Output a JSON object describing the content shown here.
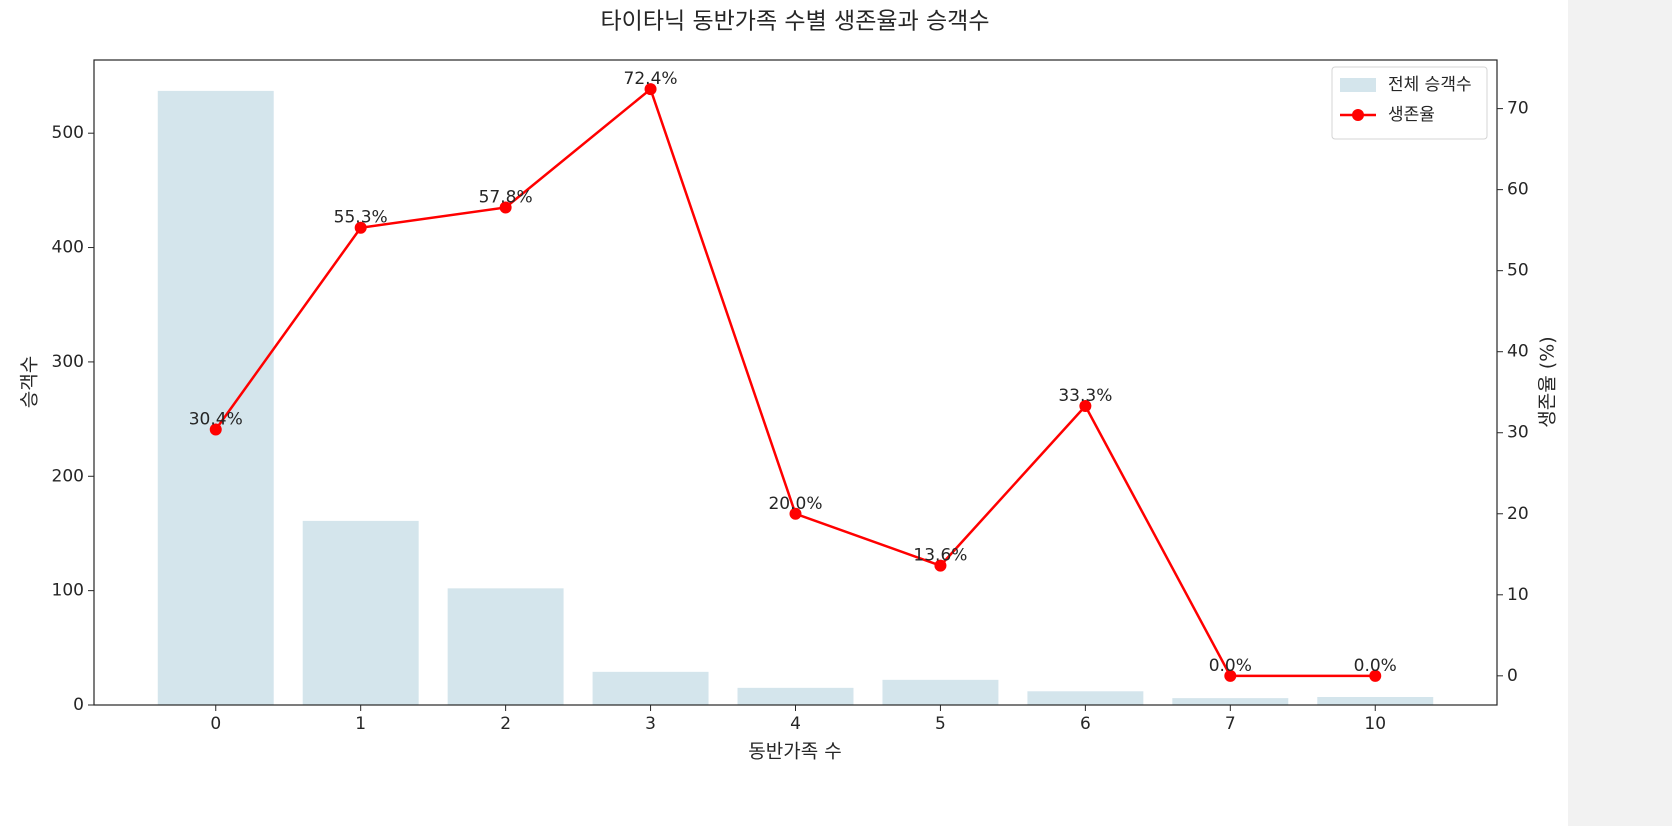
{
  "chart_data": {
    "type": "combo",
    "title": "타이타닉 동반가족 수별 생존율과 승객수",
    "x_label": "동반가족 수",
    "y_label": "승객수",
    "y2_label": "생존율 (%)",
    "categories": [
      "0",
      "1",
      "2",
      "3",
      "4",
      "5",
      "6",
      "7",
      "10"
    ],
    "series": [
      {
        "name": "전체 승객수",
        "type": "bar",
        "color": "#d4e5ec",
        "values": [
          537,
          161,
          102,
          29,
          15,
          22,
          12,
          6,
          7
        ]
      },
      {
        "name": "생존율",
        "type": "line",
        "axis": "y2",
        "color": "#ff0000",
        "values": [
          30.4,
          55.3,
          57.8,
          72.4,
          20.0,
          13.6,
          33.3,
          0.0,
          0.0
        ],
        "value_labels": [
          "30.4%",
          "55.3%",
          "57.8%",
          "72.4%",
          "20.0%",
          "13.6%",
          "33.3%",
          "0.0%",
          "0.0%"
        ]
      }
    ],
    "ylim": [
      0,
      564
    ],
    "yticks": [
      0,
      100,
      200,
      300,
      400,
      500
    ],
    "y2lim": [
      -3.6,
      76.0
    ],
    "y2ticks": [
      0,
      10,
      20,
      30,
      40,
      50,
      60,
      70
    ],
    "legend": "upper right"
  }
}
